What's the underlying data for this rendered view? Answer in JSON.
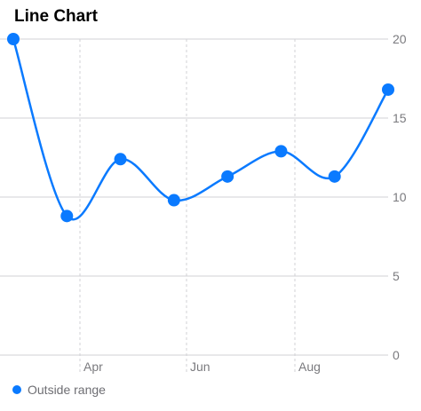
{
  "chart_data": {
    "type": "line",
    "title": "Line Chart",
    "x_tick_labels": [
      "Apr",
      "Jun",
      "Aug"
    ],
    "y_ticks": [
      0,
      5,
      10,
      15,
      20
    ],
    "ylim": [
      0,
      20
    ],
    "x_is_time": true,
    "smooth": true,
    "series": [
      {
        "name": "Outside range",
        "color": "#0a7aff",
        "values": [
          20,
          8.8,
          12.4,
          9.8,
          11.3,
          12.9,
          11.3,
          16.8
        ]
      }
    ],
    "grid": {
      "horizontal": "solid",
      "vertical": "dashed"
    },
    "legend_position": "bottom-left"
  }
}
